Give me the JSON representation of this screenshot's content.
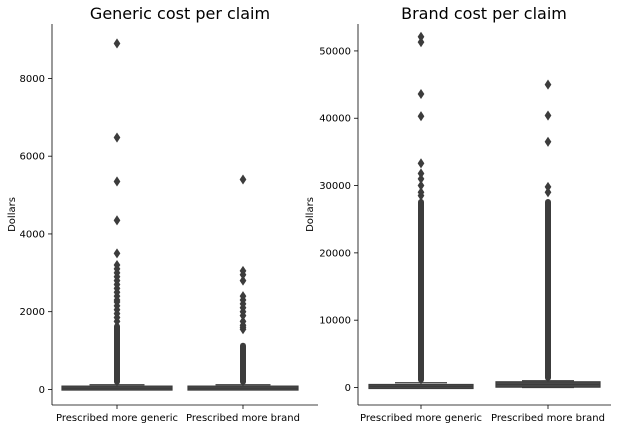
{
  "chart_data": [
    {
      "type": "box",
      "title": "Generic cost per claim",
      "ylabel": "Dollars",
      "xlabel": "",
      "ylim": [
        -400,
        9400
      ],
      "yticks": [
        0,
        2000,
        4000,
        6000,
        8000
      ],
      "categories": [
        "Prescribed more generic",
        "Prescribed more brand"
      ],
      "boxes": [
        {
          "category": "Prescribed more generic",
          "q1": 10,
          "median": 30,
          "q3": 60,
          "whisker_low": 0,
          "whisker_high": 120,
          "outliers_dense_range": [
            120,
            1700
          ],
          "outliers": [
            1750,
            1850,
            1950,
            2050,
            2150,
            2250,
            2300,
            2400,
            2500,
            2600,
            2700,
            2800,
            2900,
            3000,
            3100,
            3200,
            3500,
            4350,
            5350,
            6480,
            8900
          ]
        },
        {
          "category": "Prescribed more brand",
          "q1": 10,
          "median": 30,
          "q3": 60,
          "whisker_low": 0,
          "whisker_high": 120,
          "outliers_dense_range": [
            120,
            1200
          ],
          "outliers": [
            1550,
            1600,
            1650,
            1750,
            1900,
            2000,
            2100,
            2200,
            2300,
            2400,
            2800,
            2950,
            3050,
            5400
          ]
        }
      ]
    },
    {
      "type": "box",
      "title": "Brand cost per claim",
      "ylabel": "Dollars",
      "xlabel": "",
      "ylim": [
        -2600,
        54000
      ],
      "yticks": [
        0,
        10000,
        20000,
        30000,
        40000,
        50000
      ],
      "categories": [
        "Prescribed more generic",
        "Prescribed more brand"
      ],
      "boxes": [
        {
          "category": "Prescribed more generic",
          "q1": 0,
          "median": 150,
          "q3": 300,
          "whisker_low": 0,
          "whisker_high": 700,
          "outliers_dense_range": [
            700,
            28000
          ],
          "outliers": [
            28500,
            29000,
            30000,
            31000,
            31800,
            33300,
            40300,
            43600,
            51300,
            52100
          ]
        },
        {
          "category": "Prescribed more brand",
          "q1": 200,
          "median": 450,
          "q3": 700,
          "whisker_low": 0,
          "whisker_high": 1000,
          "outliers_dense_range": [
            1000,
            28000
          ],
          "outliers": [
            29000,
            29800,
            36500,
            40400,
            45000
          ]
        }
      ]
    }
  ]
}
